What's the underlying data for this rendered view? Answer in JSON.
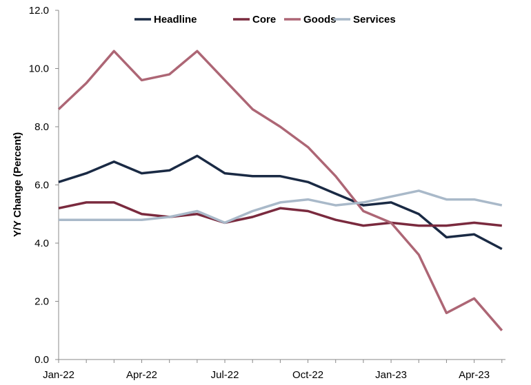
{
  "chart_data": {
    "type": "line",
    "title": "",
    "xlabel": "",
    "ylabel": "Y/Y Change (Percent)",
    "ylim": [
      0,
      12
    ],
    "yticks": [
      "0.0",
      "2.0",
      "4.0",
      "6.0",
      "8.0",
      "10.0",
      "12.0"
    ],
    "grid": false,
    "legend_position": "top",
    "x": [
      "Jan-22",
      "Feb-22",
      "Mar-22",
      "Apr-22",
      "May-22",
      "Jun-22",
      "Jul-22",
      "Aug-22",
      "Sep-22",
      "Oct-22",
      "Nov-22",
      "Dec-22",
      "Jan-23",
      "Feb-23",
      "Mar-23",
      "Apr-23",
      "May-23"
    ],
    "xtick_labels": [
      "Jan-22",
      "Apr-22",
      "Jul-22",
      "Oct-22",
      "Jan-23",
      "Apr-23"
    ],
    "series": [
      {
        "name": "Headline",
        "color": "#1a2a44",
        "values": [
          6.1,
          6.4,
          6.8,
          6.4,
          6.5,
          7.0,
          6.4,
          6.3,
          6.3,
          6.1,
          5.7,
          5.3,
          5.4,
          5.0,
          4.2,
          4.3,
          3.8
        ]
      },
      {
        "name": "Core",
        "color": "#7a2a3e",
        "values": [
          5.2,
          5.4,
          5.4,
          5.0,
          4.9,
          5.0,
          4.7,
          4.9,
          5.2,
          5.1,
          4.8,
          4.6,
          4.7,
          4.6,
          4.6,
          4.7,
          4.6
        ]
      },
      {
        "name": "Goods",
        "color": "#ad6675",
        "values": [
          8.6,
          9.5,
          10.6,
          9.6,
          9.8,
          10.6,
          9.6,
          8.6,
          8.0,
          7.3,
          6.3,
          5.1,
          4.7,
          3.6,
          1.6,
          2.1,
          1.0
        ]
      },
      {
        "name": "Services",
        "color": "#a9b9c9",
        "values": [
          4.8,
          4.8,
          4.8,
          4.8,
          4.9,
          5.1,
          4.7,
          5.1,
          5.4,
          5.5,
          5.3,
          5.4,
          5.6,
          5.8,
          5.5,
          5.5,
          5.3
        ]
      }
    ]
  }
}
